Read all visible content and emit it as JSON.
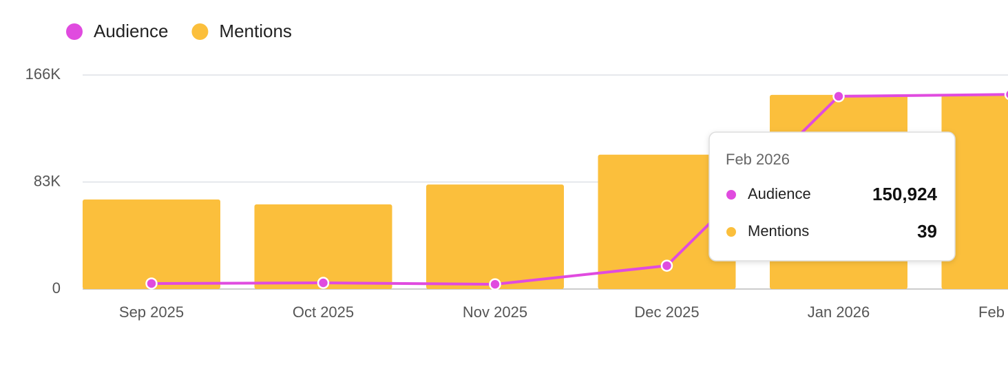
{
  "chart_data": {
    "type": "bar_line",
    "categories": [
      "Sep 2025",
      "Oct 2025",
      "Nov 2025",
      "Dec 2025",
      "Jan 2026",
      "Feb 2026"
    ],
    "series": [
      {
        "name": "Audience",
        "color": "#e04bdf",
        "type": "line",
        "axis": "y",
        "values": [
          4300,
          4800,
          3700,
          18100,
          149500,
          150924
        ],
        "value_labels": [
          null,
          null,
          null,
          null,
          null,
          "150,924"
        ]
      },
      {
        "name": "Mentions",
        "color": "#fbbf3c",
        "type": "bar",
        "axis": "y2",
        "values": [
          18,
          17,
          21,
          27,
          39,
          39
        ]
      }
    ],
    "ylim": [
      0,
      166000
    ],
    "yticks": [
      {
        "value": 0,
        "label": "0"
      },
      {
        "value": 83000,
        "label": "83K"
      },
      {
        "value": 166000,
        "label": "166K"
      }
    ],
    "y2lim": [
      0,
      43
    ],
    "grid": true,
    "legend": "top-left",
    "tooltip_index": 5
  }
}
